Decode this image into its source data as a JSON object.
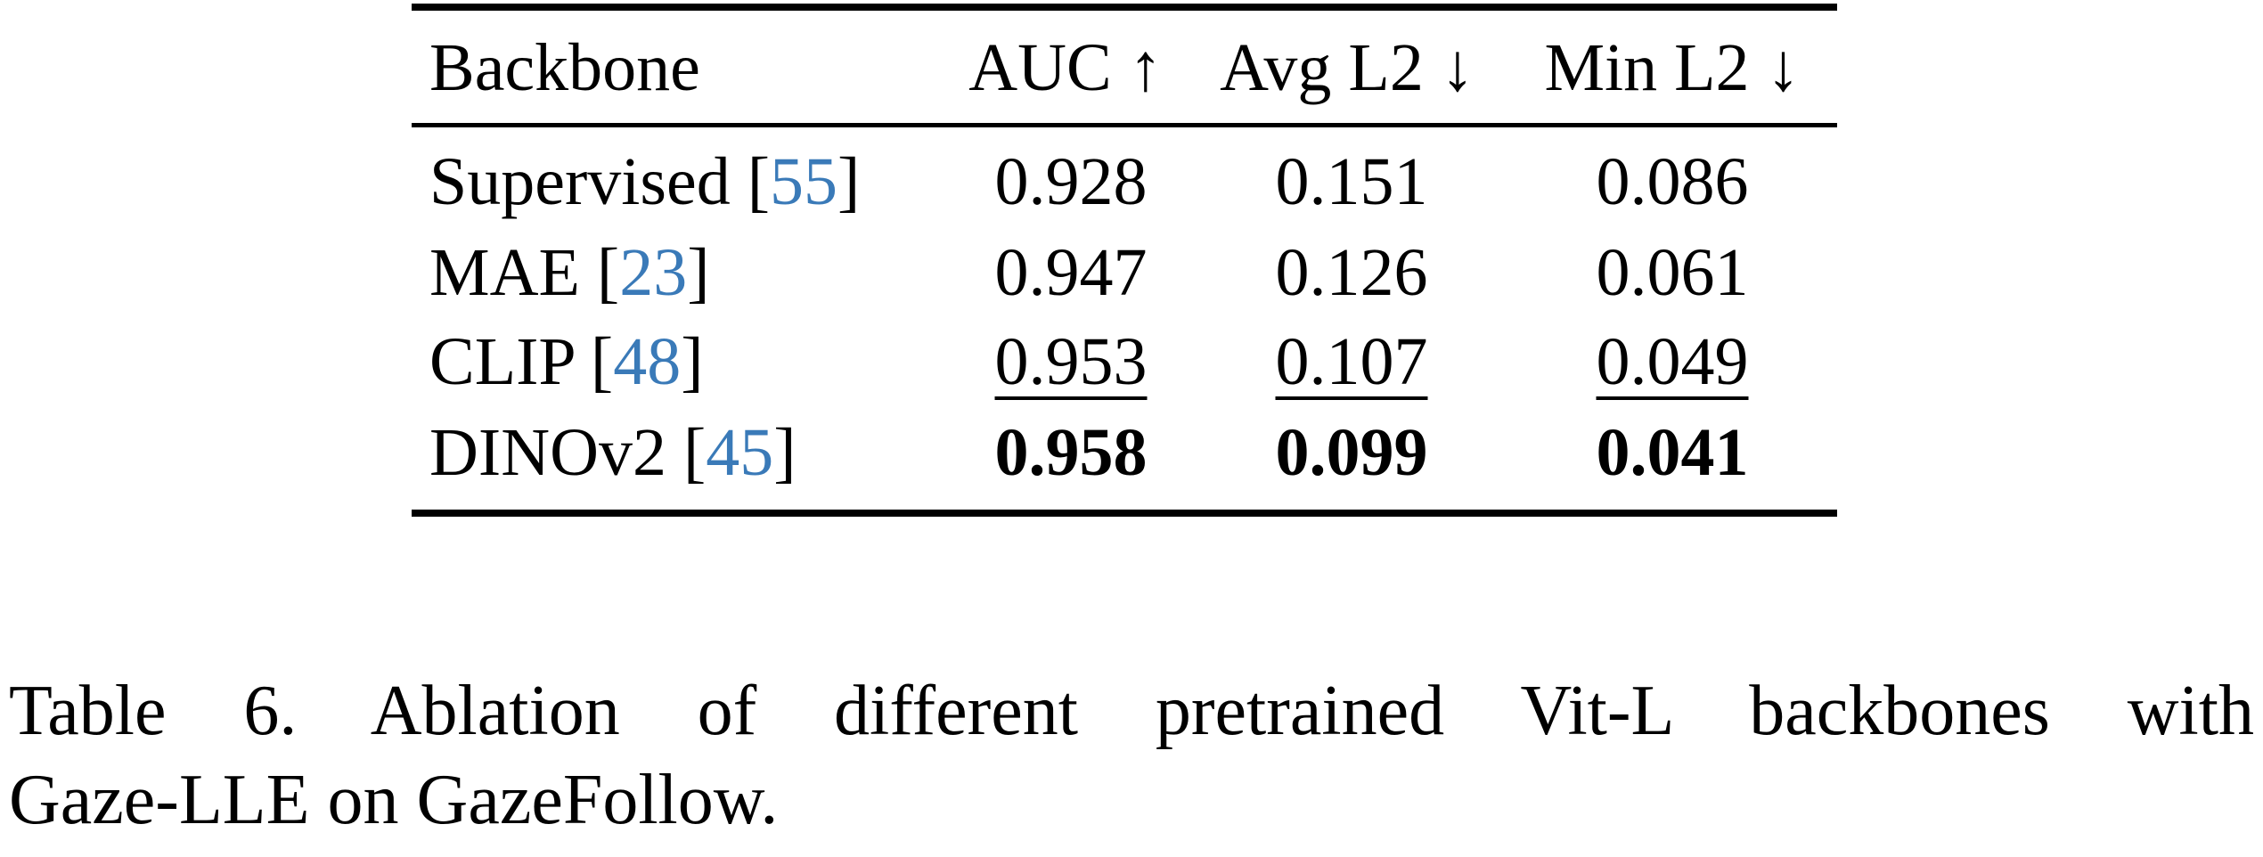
{
  "table": {
    "headers": [
      "Backbone",
      "AUC ↑",
      "Avg L2 ↓",
      "Min L2 ↓"
    ],
    "rows": [
      {
        "name": "Supervised",
        "ref": "55",
        "auc": "0.928",
        "avg_l2": "0.151",
        "min_l2": "0.086"
      },
      {
        "name": "MAE",
        "ref": "23",
        "auc": "0.947",
        "avg_l2": "0.126",
        "min_l2": "0.061"
      },
      {
        "name": "CLIP",
        "ref": "48",
        "auc": "0.953",
        "avg_l2": "0.107",
        "min_l2": "0.049"
      },
      {
        "name": "DINOv2",
        "ref": "45",
        "auc": "0.958",
        "avg_l2": "0.099",
        "min_l2": "0.041"
      }
    ]
  },
  "caption": {
    "line1": "Table 6.  Ablation of different pretrained Vit-L backbones with",
    "line2": "Gaze-LLE on GazeFollow."
  },
  "colors": {
    "citation": "#3a7ab8",
    "text": "#000000"
  }
}
